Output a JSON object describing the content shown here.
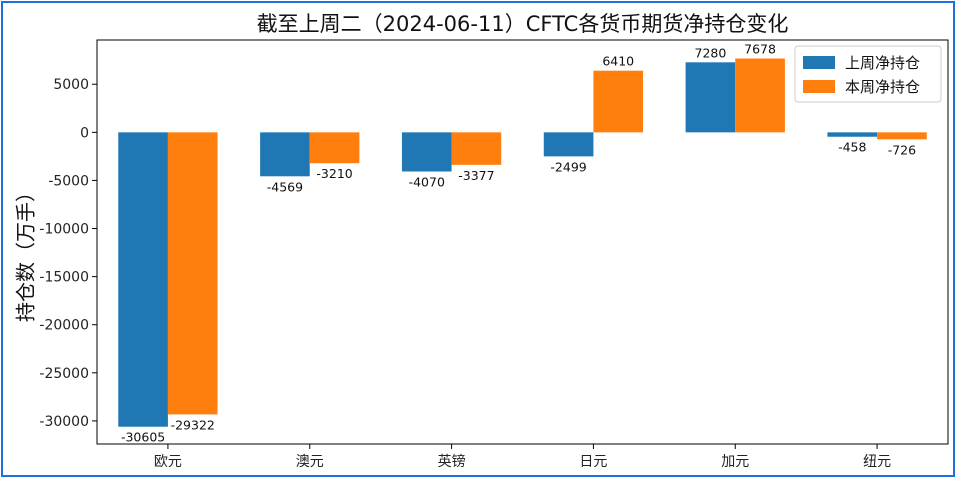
{
  "chart_data": {
    "type": "bar",
    "title": "截至上周二（2024-06-11）CFTC各货币期货净持仓变化",
    "xlabel": "",
    "ylabel": "持仓数（万手）",
    "categories": [
      "欧元",
      "澳元",
      "英镑",
      "日元",
      "加元",
      "纽元"
    ],
    "series": [
      {
        "name": "上周净持仓",
        "color": "#1f77b4",
        "values": [
          -30605,
          -4569,
          -4070,
          -2499,
          7280,
          -458
        ]
      },
      {
        "name": "本周净持仓",
        "color": "#ff7f0e",
        "values": [
          -29322,
          -3210,
          -3377,
          6410,
          7678,
          -726
        ]
      }
    ],
    "ylim": [
      -32400,
      9600
    ],
    "yticks": [
      5000,
      0,
      -5000,
      -10000,
      -15000,
      -20000,
      -25000,
      -30000
    ],
    "grid": false,
    "legend_position": "top-right",
    "frame_color": "#1e6fe0"
  }
}
